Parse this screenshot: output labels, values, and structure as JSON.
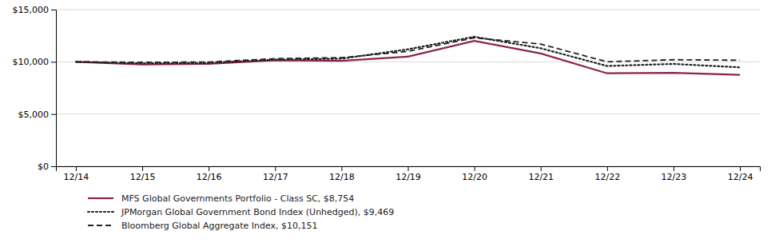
{
  "chart_data": {
    "type": "line",
    "categories": [
      "12/14",
      "12/15",
      "12/16",
      "12/17",
      "12/18",
      "12/19",
      "12/20",
      "12/21",
      "12/22",
      "12/23",
      "12/24"
    ],
    "series": [
      {
        "name": "MFS Global Governments Portfolio - Class SC, $8,754",
        "color": "#8B2252",
        "line_style": "solid",
        "values": [
          10000,
          9750,
          9800,
          10150,
          10100,
          10500,
          12000,
          10800,
          8900,
          8950,
          8754
        ]
      },
      {
        "name": "JPMorgan Global Government Bond Index (Unhedged), $9,469",
        "color": "#222222",
        "line_style": "dotted",
        "values": [
          10000,
          9850,
          9900,
          10200,
          10300,
          11200,
          12400,
          11300,
          9600,
          9800,
          9469
        ]
      },
      {
        "name": "Bloomberg Global Aggregate Index, $10,151",
        "color": "#222222",
        "line_style": "dashed",
        "values": [
          10000,
          9950,
          9980,
          10300,
          10400,
          11000,
          12300,
          11700,
          10000,
          10200,
          10151
        ]
      }
    ],
    "ylim": [
      0,
      15000
    ],
    "yticks": [
      {
        "value": 0,
        "label": "$0"
      },
      {
        "value": 5000,
        "label": "$5,000"
      },
      {
        "value": 10000,
        "label": "$10,000"
      },
      {
        "value": 15000,
        "label": "$15,000"
      }
    ],
    "grid": true,
    "legend": "bottom"
  }
}
